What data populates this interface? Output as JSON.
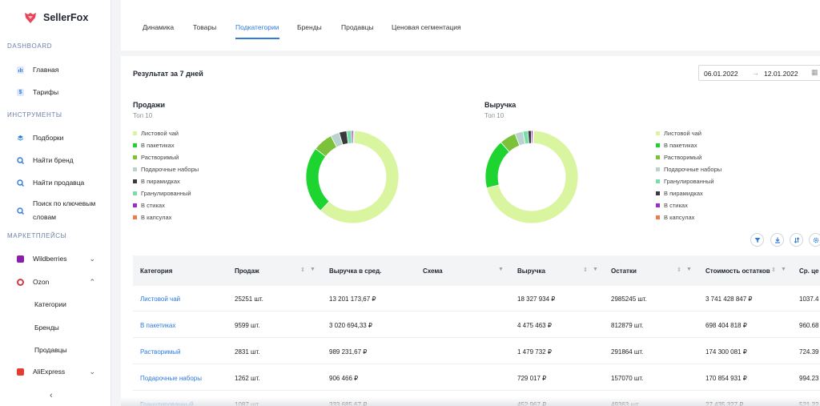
{
  "brand": {
    "name": "SellerFox",
    "accent": "#e8455b"
  },
  "sidebar": {
    "sections": {
      "dashboard": "DASHBOARD",
      "tools": "ИНСТРУМЕНТЫ",
      "marketplaces": "МАРКЕТПЛЕЙСЫ"
    },
    "dashboard_items": [
      {
        "label": "Главная",
        "icon": "chart-icon"
      },
      {
        "label": "Тарифы",
        "icon": "dollar-icon"
      }
    ],
    "tool_items": [
      {
        "label": "Подборки",
        "icon": "layers-icon"
      },
      {
        "label": "Найти бренд",
        "icon": "search-brand-icon"
      },
      {
        "label": "Найти продавца",
        "icon": "search-seller-icon"
      },
      {
        "label": "Поиск по ключевым словам",
        "icon": "keyword-search-icon"
      }
    ],
    "marketplaces": [
      {
        "label": "Wildberries",
        "icon": "wildberries-icon",
        "color": "#8b1fa8",
        "expanded": false
      },
      {
        "label": "Ozon",
        "icon": "ozon-icon",
        "color": "#d23a4a",
        "expanded": true
      },
      {
        "label": "AliExpress",
        "icon": "aliexpress-icon",
        "color": "#e63b2e",
        "expanded": false
      }
    ],
    "ozon_sub": [
      "Категории",
      "Бренды",
      "Продавцы"
    ]
  },
  "tabs": [
    {
      "label": "Динамика",
      "active": false
    },
    {
      "label": "Товары",
      "active": false
    },
    {
      "label": "Подкатегории",
      "active": true
    },
    {
      "label": "Бренды",
      "active": false
    },
    {
      "label": "Продавцы",
      "active": false
    },
    {
      "label": "Ценовая сегментация",
      "active": false
    }
  ],
  "result_title": "Результат за 7 дней",
  "date_range": {
    "from": "06.01.2022",
    "to": "12.01.2022"
  },
  "charts": {
    "sales": {
      "title": "Продажи",
      "subtitle": "Топ 10",
      "legend": [
        {
          "label": "Листовой чай",
          "color": "#d9f5a0"
        },
        {
          "label": "В пакетиках",
          "color": "#1ed431"
        },
        {
          "label": "Растворимый",
          "color": "#7cc13a"
        },
        {
          "label": "Подарочные наборы",
          "color": "#b9d3cf"
        },
        {
          "label": "В пирамидках",
          "color": "#3a3a3a"
        },
        {
          "label": "Гранулированный",
          "color": "#74e0a8"
        },
        {
          "label": "В стиках",
          "color": "#9a2cd0"
        },
        {
          "label": "В капсулах",
          "color": "#f07a4a"
        }
      ],
      "values": [
        25251,
        9599,
        2831,
        1262,
        1087,
        700,
        250,
        120
      ]
    },
    "revenue": {
      "title": "Выручка",
      "subtitle": "Топ 10",
      "legend": [
        {
          "label": "Листовой чай",
          "color": "#d9f5a0"
        },
        {
          "label": "В пакетиках",
          "color": "#1ed431"
        },
        {
          "label": "Растворимый",
          "color": "#7cc13a"
        },
        {
          "label": "Подарочные наборы",
          "color": "#b9d3cf"
        },
        {
          "label": "Гранулированный",
          "color": "#74e0a8"
        },
        {
          "label": "В пирамидках",
          "color": "#3a3a3a"
        },
        {
          "label": "В стиках",
          "color": "#9a2cd0"
        },
        {
          "label": "В капсулах",
          "color": "#f07a4a"
        }
      ],
      "values": [
        18327934,
        4475463,
        1479732,
        729017,
        452967,
        300000,
        150000,
        60000
      ]
    }
  },
  "toolbar_icons": [
    "filter-icon",
    "download-icon",
    "sort-icon",
    "settings-icon"
  ],
  "table": {
    "columns": [
      "Категория",
      "Продаж",
      "Выручка в сред.",
      "Схема",
      "Выручка",
      "Остатки",
      "Стоимость остатков",
      "Ср. це"
    ],
    "rows": [
      [
        "Листовой чай",
        "25251 шт.",
        "13 201 173,67 ₽",
        "",
        "18 327 934 ₽",
        "2985245 шт.",
        "3 741 428 847 ₽",
        "1037.4"
      ],
      [
        "В пакетиках",
        "9599 шт.",
        "3 020 694,33 ₽",
        "",
        "4 475 463 ₽",
        "812879 шт.",
        "698 404 818 ₽",
        "960.68"
      ],
      [
        "Растворимый",
        "2831 шт.",
        "989 231,67 ₽",
        "",
        "1 479 732 ₽",
        "291864 шт.",
        "174 300 081 ₽",
        "724.39"
      ],
      [
        "Подарочные наборы",
        "1262 шт.",
        "906 466 ₽",
        "",
        "729 017 ₽",
        "157070 шт.",
        "170 854 931 ₽",
        "994.23"
      ],
      [
        "Гранулированный",
        "1087 шт.",
        "333 685,67 ₽",
        "",
        "452 967 ₽",
        "49363 шт.",
        "27 435 327 ₽",
        "521.22"
      ]
    ]
  }
}
